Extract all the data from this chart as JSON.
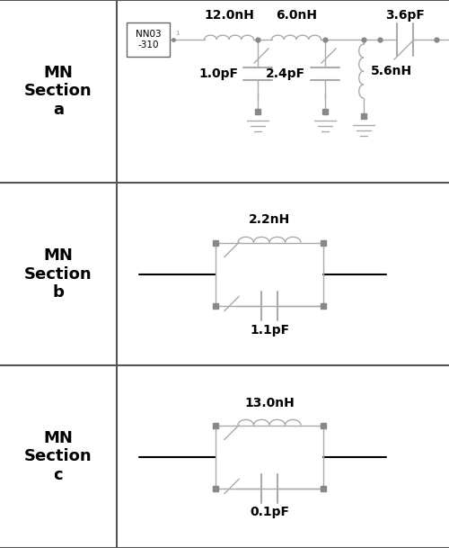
{
  "section_labels": [
    "MN\nSection\na",
    "MN\nSection\nb",
    "MN\nSection\nc"
  ],
  "section_a": {
    "inductor1_label": "12.0nH",
    "inductor2_label": "6.0nH",
    "cap1_label": "3.6pF",
    "shunt_cap1_label": "1.0pF",
    "shunt_cap2_label": "2.4pF",
    "shunt_ind_label": "5.6nH",
    "box_label": "NN03\n-310"
  },
  "section_b": {
    "inductor_label": "2.2nH",
    "cap_label": "1.1pF"
  },
  "section_c": {
    "inductor_label": "13.0nH",
    "cap_label": "0.1pF"
  },
  "line_color": "#aaaaaa",
  "dot_color": "#888888",
  "text_color": "#000000",
  "border_color": "#555555",
  "background_color": "#ffffff",
  "label_fontsize": 10,
  "section_label_fontsize": 13
}
